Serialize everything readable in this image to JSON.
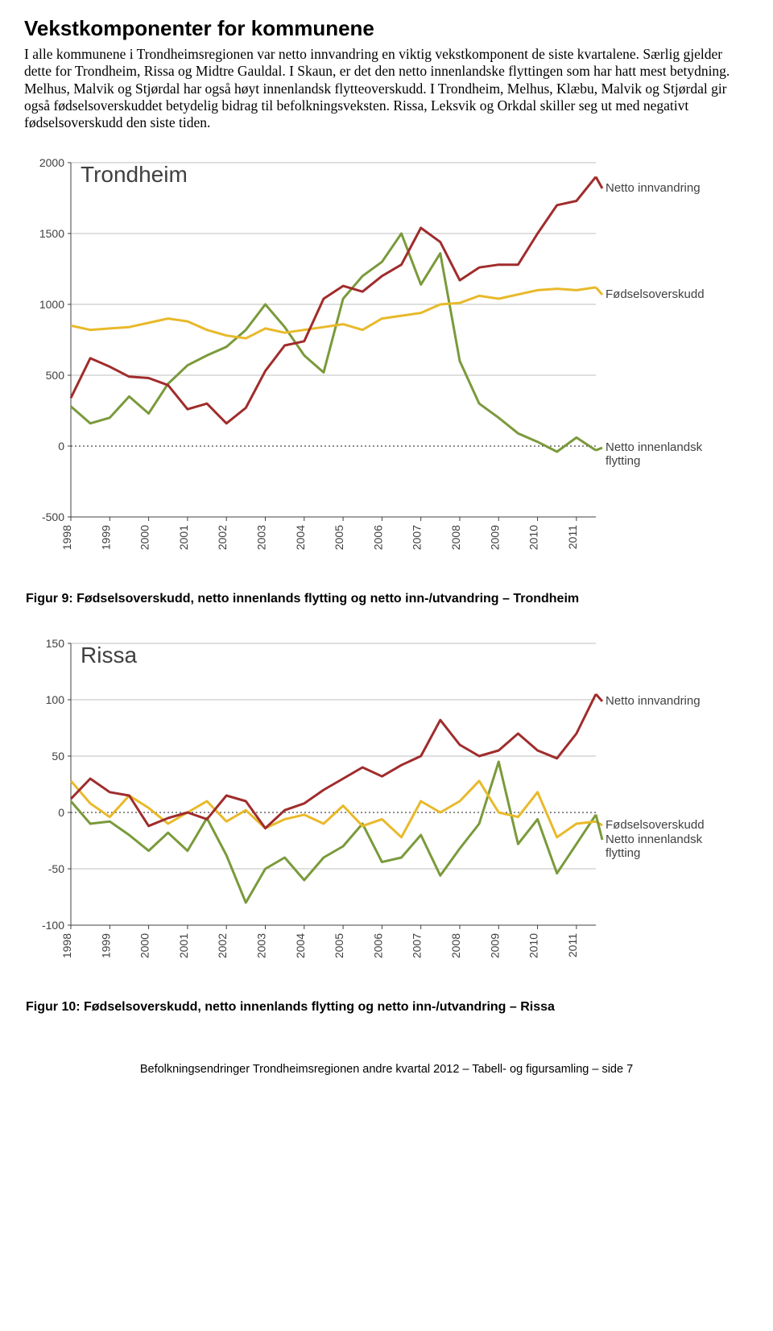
{
  "heading": "Vekstkomponenter for kommunene",
  "paragraph": "I alle kommunene i Trondheimsregionen var netto innvandring en viktig vekstkomponent de siste kvartalene. Særlig gjelder dette for Trondheim, Rissa og Midtre Gauldal. I Skaun, er det den netto innenlandske flyttingen som har hatt mest betydning. Melhus, Malvik og Stjørdal har også høyt innenlandsk flytteoverskudd. I Trondheim, Melhus, Klæbu, Malvik og Stjørdal gir også fødselsoverskuddet betydelig bidrag til befolkningsveksten. Rissa, Leksvik og Orkdal skiller seg ut med negativt fødselsoverskudd den siste tiden.",
  "chart1": {
    "title": "Trondheim",
    "type": "line",
    "years": [
      "1998",
      "1999",
      "2000",
      "2001",
      "2002",
      "2003",
      "2004",
      "2005",
      "2006",
      "2007",
      "2008",
      "2009",
      "2010",
      "2011"
    ],
    "ylim": [
      -500,
      2000
    ],
    "yticks": [
      -500,
      0,
      500,
      1000,
      1500,
      2000
    ],
    "colors": {
      "innvandring": "#a02c2c",
      "fodsel": "#e8b92a",
      "innenlandsk": "#7a9a3b",
      "grid": "#bfbfbf",
      "zero": "#1a1a1a",
      "text": "#404040"
    },
    "labels": {
      "innvandring": "Netto innvandring",
      "fodsel": "Fødselsoverskudd",
      "innenlandsk": "Netto innenlandsk flytting"
    },
    "series": {
      "innvandring": [
        340,
        620,
        560,
        490,
        480,
        430,
        260,
        300,
        160,
        270,
        530,
        710,
        740,
        1040,
        1130,
        1090,
        1200,
        1280,
        1540,
        1440,
        1170,
        1260,
        1280,
        1280,
        1500,
        1700,
        1730,
        1900
      ],
      "fodsel": [
        850,
        820,
        830,
        840,
        870,
        900,
        880,
        820,
        780,
        760,
        830,
        800,
        820,
        840,
        860,
        820,
        900,
        920,
        940,
        1000,
        1010,
        1060,
        1040,
        1070,
        1100,
        1110,
        1100,
        1120
      ],
      "innenlandsk": [
        280,
        160,
        200,
        350,
        230,
        440,
        570,
        640,
        700,
        820,
        1000,
        840,
        640,
        520,
        1040,
        1200,
        1300,
        1500,
        1140,
        1360,
        600,
        300,
        200,
        90,
        30,
        -40,
        60,
        -30
      ]
    }
  },
  "caption1": "Figur 9: Fødselsoverskudd, netto innenlands flytting og netto inn-/utvandring – Trondheim",
  "chart2": {
    "title": "Rissa",
    "type": "line",
    "years": [
      "1998",
      "1999",
      "2000",
      "2001",
      "2002",
      "2003",
      "2004",
      "2005",
      "2006",
      "2007",
      "2008",
      "2009",
      "2010",
      "2011"
    ],
    "ylim": [
      -100,
      150
    ],
    "yticks": [
      -100,
      -50,
      0,
      50,
      100,
      150
    ],
    "colors": {
      "innvandring": "#a02c2c",
      "fodsel": "#e8b92a",
      "innenlandsk": "#7a9a3b",
      "grid": "#bfbfbf",
      "zero": "#1a1a1a",
      "text": "#404040"
    },
    "labels": {
      "innvandring": "Netto innvandring",
      "fodsel": "Fødselsoverskudd",
      "innenlandsk": "Netto innenlandsk flytting"
    },
    "series": {
      "innvandring": [
        12,
        30,
        18,
        15,
        -12,
        -5,
        0,
        -6,
        15,
        10,
        -14,
        2,
        8,
        20,
        30,
        40,
        32,
        42,
        50,
        82,
        60,
        50,
        55,
        70,
        55,
        48,
        70,
        105
      ],
      "fodsel": [
        28,
        8,
        -4,
        15,
        4,
        -10,
        0,
        10,
        -8,
        2,
        -14,
        -6,
        -2,
        -10,
        6,
        -12,
        -6,
        -22,
        10,
        0,
        10,
        28,
        0,
        -4,
        18,
        -22,
        -10,
        -8
      ],
      "innenlandsk": [
        10,
        -10,
        -8,
        -20,
        -34,
        -18,
        -34,
        -5,
        -38,
        -80,
        -50,
        -40,
        -60,
        -40,
        -30,
        -10,
        -44,
        -40,
        -20,
        -56,
        -32,
        -10,
        45,
        -28,
        -6,
        -54,
        -28,
        -2
      ]
    }
  },
  "caption2": "Figur 10: Fødselsoverskudd, netto innenlands flytting og netto inn-/utvandring – Rissa",
  "footer": "Befolkningsendringer Trondheimsregionen andre kvartal 2012 – Tabell- og figursamling – side 7"
}
